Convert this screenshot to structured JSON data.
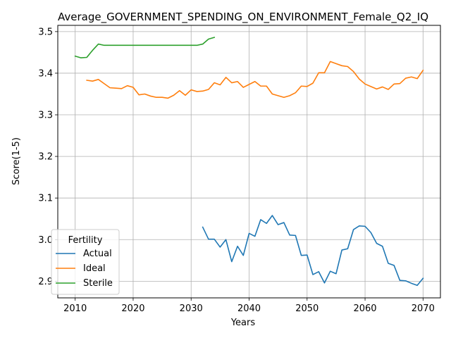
{
  "chart_data": {
    "type": "line",
    "title": "Average_GOVERNMENT_SPENDING_ON_ENVIRONMENT_Female_Q2_IQ",
    "xlabel": "Years",
    "ylabel": "Score(1-5)",
    "xlim": [
      2007,
      2073
    ],
    "ylim": [
      2.86,
      3.515
    ],
    "xticks": [
      2010,
      2020,
      2030,
      2040,
      2050,
      2060,
      2070
    ],
    "yticks": [
      2.9,
      3.0,
      3.1,
      3.2,
      3.3,
      3.4,
      3.5
    ],
    "xtick_labels": [
      "2010",
      "2020",
      "2030",
      "2040",
      "2050",
      "2060",
      "2070"
    ],
    "ytick_labels": [
      "2.9",
      "3.0",
      "3.1",
      "3.2",
      "3.3",
      "3.4",
      "3.5"
    ],
    "grid": true,
    "legend": {
      "title": "Fertility",
      "placement": "lower-left"
    },
    "series": [
      {
        "name": "Actual",
        "color": "#1f77b4",
        "x": [
          2032,
          2033,
          2034,
          2035,
          2036,
          2037,
          2038,
          2039,
          2040,
          2041,
          2042,
          2043,
          2044,
          2045,
          2046,
          2047,
          2048,
          2049,
          2050,
          2051,
          2052,
          2053,
          2054,
          2055,
          2056,
          2057,
          2058,
          2059,
          2060,
          2061,
          2062,
          2063,
          2064,
          2065,
          2066,
          2067,
          2068,
          2069,
          2070
        ],
        "y": [
          3.03,
          3.001,
          3.001,
          2.982,
          3.0,
          2.947,
          2.984,
          2.962,
          3.015,
          3.008,
          3.048,
          3.039,
          3.058,
          3.036,
          3.041,
          3.011,
          3.01,
          2.962,
          2.963,
          2.916,
          2.923,
          2.896,
          2.924,
          2.918,
          2.975,
          2.978,
          3.024,
          3.033,
          3.032,
          3.017,
          2.991,
          2.984,
          2.943,
          2.938,
          2.902,
          2.901,
          2.895,
          2.89,
          2.907
        ]
      },
      {
        "name": "Ideal",
        "color": "#ff7f0e",
        "x": [
          2012,
          2013,
          2014,
          2015,
          2016,
          2017,
          2018,
          2019,
          2020,
          2021,
          2022,
          2023,
          2024,
          2025,
          2026,
          2027,
          2028,
          2029,
          2030,
          2031,
          2032,
          2033,
          2034,
          2035,
          2036,
          2037,
          2038,
          2039,
          2040,
          2041,
          2042,
          2043,
          2044,
          2045,
          2046,
          2047,
          2048,
          2049,
          2050,
          2051,
          2052,
          2053,
          2054,
          2055,
          2056,
          2057,
          2058,
          2059,
          2060,
          2061,
          2062,
          2063,
          2064,
          2065,
          2066,
          2067,
          2068,
          2069,
          2070
        ],
        "y": [
          3.383,
          3.381,
          3.385,
          3.375,
          3.365,
          3.364,
          3.363,
          3.37,
          3.366,
          3.348,
          3.35,
          3.345,
          3.342,
          3.342,
          3.34,
          3.347,
          3.358,
          3.347,
          3.36,
          3.356,
          3.357,
          3.361,
          3.377,
          3.372,
          3.39,
          3.377,
          3.38,
          3.366,
          3.373,
          3.38,
          3.369,
          3.369,
          3.35,
          3.346,
          3.342,
          3.346,
          3.353,
          3.369,
          3.368,
          3.376,
          3.401,
          3.401,
          3.428,
          3.423,
          3.418,
          3.416,
          3.404,
          3.386,
          3.374,
          3.368,
          3.362,
          3.367,
          3.361,
          3.374,
          3.375,
          3.388,
          3.391,
          3.387,
          3.407
        ]
      },
      {
        "name": "Sterile",
        "color": "#2ca02c",
        "x": [
          2010,
          2011,
          2012,
          2013,
          2014,
          2015,
          2016,
          2017,
          2018,
          2019,
          2020,
          2021,
          2022,
          2023,
          2024,
          2025,
          2026,
          2027,
          2028,
          2029,
          2030,
          2031,
          2032,
          2033,
          2034
        ],
        "y": [
          3.441,
          3.437,
          3.438,
          3.455,
          3.47,
          3.467,
          3.467,
          3.467,
          3.467,
          3.467,
          3.467,
          3.467,
          3.467,
          3.467,
          3.467,
          3.467,
          3.467,
          3.467,
          3.467,
          3.467,
          3.467,
          3.467,
          3.47,
          3.482,
          3.486
        ]
      }
    ]
  }
}
